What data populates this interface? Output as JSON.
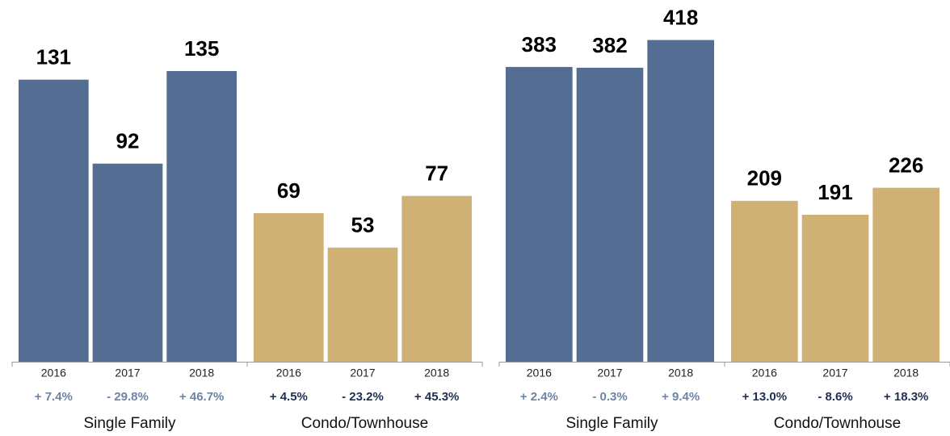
{
  "chart_data": [
    {
      "type": "bar",
      "ylim": [
        0,
        168
      ],
      "groups": [
        {
          "name": "Single Family",
          "color": "#546e93",
          "label_color": "#6d84a6",
          "categories": [
            "2016",
            "2017",
            "2018"
          ],
          "values": [
            131,
            92,
            135
          ],
          "changes": [
            "+ 7.4%",
            "- 29.8%",
            "+ 46.7%"
          ]
        },
        {
          "name": "Condo/Townhouse",
          "color": "#cfb176",
          "label_color": "#1f2f4f",
          "categories": [
            "2016",
            "2017",
            "2018"
          ],
          "values": [
            69,
            53,
            77
          ],
          "changes": [
            "+ 4.5%",
            "- 23.2%",
            "+ 45.3%"
          ]
        }
      ]
    },
    {
      "type": "bar",
      "ylim": [
        0,
        470
      ],
      "groups": [
        {
          "name": "Single Family",
          "color": "#546e93",
          "label_color": "#6d84a6",
          "categories": [
            "2016",
            "2017",
            "2018"
          ],
          "values": [
            383,
            382,
            418
          ],
          "changes": [
            "+ 2.4%",
            "- 0.3%",
            "+ 9.4%"
          ]
        },
        {
          "name": "Condo/Townhouse",
          "color": "#cfb176",
          "label_color": "#1f2f4f",
          "categories": [
            "2016",
            "2017",
            "2018"
          ],
          "values": [
            209,
            191,
            226
          ],
          "changes": [
            "+ 13.0%",
            "- 8.6%",
            "+ 18.3%"
          ]
        }
      ]
    }
  ]
}
